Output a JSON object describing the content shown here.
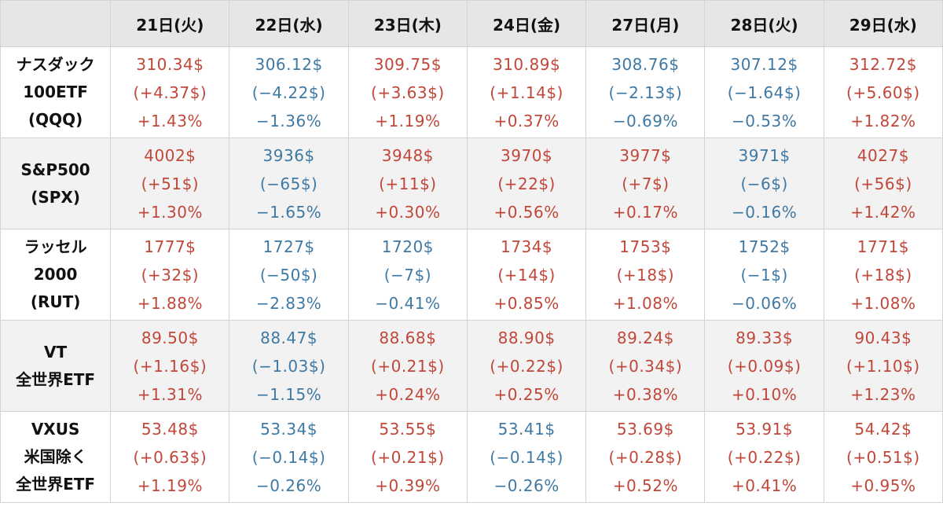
{
  "header": {
    "days": [
      "21日(火)",
      "22日(水)",
      "23日(木)",
      "24日(金)",
      "27日(月)",
      "28日(火)",
      "29日(水)"
    ]
  },
  "colors": {
    "up": "#c0473a",
    "down": "#3f79a3",
    "header_bg": "#e6e6e6",
    "alt_row_bg": "#f2f2f2"
  },
  "rows": [
    {
      "label": [
        "ナスダック",
        "100ETF",
        "(QQQ)"
      ],
      "cells": [
        {
          "dir": "up",
          "price": "310.34$",
          "change": "(+4.37$)",
          "pct": "+1.43%"
        },
        {
          "dir": "down",
          "price": "306.12$",
          "change": "(−4.22$)",
          "pct": "−1.36%"
        },
        {
          "dir": "up",
          "price": "309.75$",
          "change": "(+3.63$)",
          "pct": "+1.19%"
        },
        {
          "dir": "up",
          "price": "310.89$",
          "change": "(+1.14$)",
          "pct": "+0.37%"
        },
        {
          "dir": "down",
          "price": "308.76$",
          "change": "(−2.13$)",
          "pct": "−0.69%"
        },
        {
          "dir": "down",
          "price": "307.12$",
          "change": "(−1.64$)",
          "pct": "−0.53%"
        },
        {
          "dir": "up",
          "price": "312.72$",
          "change": "(+5.60$)",
          "pct": "+1.82%"
        }
      ]
    },
    {
      "label": [
        "S&P500",
        "(SPX)"
      ],
      "cells": [
        {
          "dir": "up",
          "price": "4002$",
          "change": "(+51$)",
          "pct": "+1.30%"
        },
        {
          "dir": "down",
          "price": "3936$",
          "change": "(−65$)",
          "pct": "−1.65%"
        },
        {
          "dir": "up",
          "price": "3948$",
          "change": "(+11$)",
          "pct": "+0.30%"
        },
        {
          "dir": "up",
          "price": "3970$",
          "change": "(+22$)",
          "pct": "+0.56%"
        },
        {
          "dir": "up",
          "price": "3977$",
          "change": "(+7$)",
          "pct": "+0.17%"
        },
        {
          "dir": "down",
          "price": "3971$",
          "change": "(−6$)",
          "pct": "−0.16%"
        },
        {
          "dir": "up",
          "price": "4027$",
          "change": "(+56$)",
          "pct": "+1.42%"
        }
      ]
    },
    {
      "label": [
        "ラッセル",
        "2000",
        "(RUT)"
      ],
      "cells": [
        {
          "dir": "up",
          "price": "1777$",
          "change": "(+32$)",
          "pct": "+1.88%"
        },
        {
          "dir": "down",
          "price": "1727$",
          "change": "(−50$)",
          "pct": "−2.83%"
        },
        {
          "dir": "down",
          "price": "1720$",
          "change": "(−7$)",
          "pct": "−0.41%"
        },
        {
          "dir": "up",
          "price": "1734$",
          "change": "(+14$)",
          "pct": "+0.85%"
        },
        {
          "dir": "up",
          "price": "1753$",
          "change": "(+18$)",
          "pct": "+1.08%"
        },
        {
          "dir": "down",
          "price": "1752$",
          "change": "(−1$)",
          "pct": "−0.06%"
        },
        {
          "dir": "up",
          "price": "1771$",
          "change": "(+18$)",
          "pct": "+1.08%"
        }
      ]
    },
    {
      "label": [
        "VT",
        "全世界ETF"
      ],
      "cells": [
        {
          "dir": "up",
          "price": "89.50$",
          "change": "(+1.16$)",
          "pct": "+1.31%"
        },
        {
          "dir": "down",
          "price": "88.47$",
          "change": "(−1.03$)",
          "pct": "−1.15%"
        },
        {
          "dir": "up",
          "price": "88.68$",
          "change": "(+0.21$)",
          "pct": "+0.24%"
        },
        {
          "dir": "up",
          "price": "88.90$",
          "change": "(+0.22$)",
          "pct": "+0.25%"
        },
        {
          "dir": "up",
          "price": "89.24$",
          "change": "(+0.34$)",
          "pct": "+0.38%"
        },
        {
          "dir": "up",
          "price": "89.33$",
          "change": "(+0.09$)",
          "pct": "+0.10%"
        },
        {
          "dir": "up",
          "price": "90.43$",
          "change": "(+1.10$)",
          "pct": "+1.23%"
        }
      ]
    },
    {
      "label": [
        "VXUS",
        "米国除く",
        "全世界ETF"
      ],
      "cells": [
        {
          "dir": "up",
          "price": "53.48$",
          "change": "(+0.63$)",
          "pct": "+1.19%"
        },
        {
          "dir": "down",
          "price": "53.34$",
          "change": "(−0.14$)",
          "pct": "−0.26%"
        },
        {
          "dir": "up",
          "price": "53.55$",
          "change": "(+0.21$)",
          "pct": "+0.39%"
        },
        {
          "dir": "down",
          "price": "53.41$",
          "change": "(−0.14$)",
          "pct": "−0.26%"
        },
        {
          "dir": "up",
          "price": "53.69$",
          "change": "(+0.28$)",
          "pct": "+0.52%"
        },
        {
          "dir": "up",
          "price": "53.91$",
          "change": "(+0.22$)",
          "pct": "+0.41%"
        },
        {
          "dir": "up",
          "price": "54.42$",
          "change": "(+0.51$)",
          "pct": "+0.95%"
        }
      ]
    }
  ]
}
